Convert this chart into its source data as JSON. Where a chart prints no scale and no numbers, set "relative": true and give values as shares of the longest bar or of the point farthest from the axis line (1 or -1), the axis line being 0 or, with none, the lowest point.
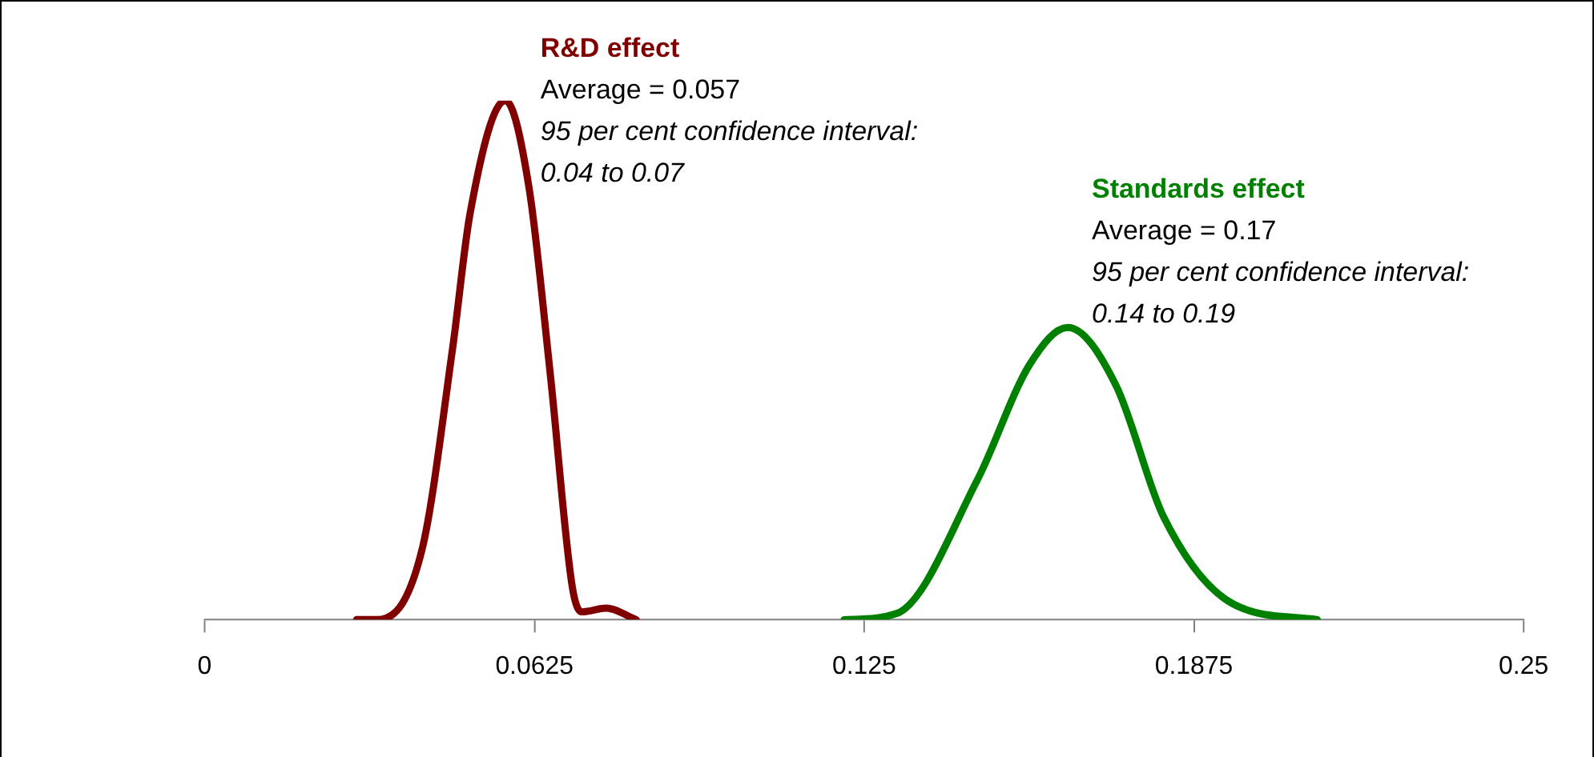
{
  "chart_data": {
    "type": "line",
    "relative": true,
    "xlim": [
      0,
      0.25
    ],
    "xticks": [
      0,
      0.0625,
      0.125,
      0.1875,
      0.25
    ],
    "series": [
      {
        "name": "R&D effect",
        "color": "#800000",
        "x": [
          0.0288,
          0.0327,
          0.0412,
          0.047,
          0.0503,
          0.057,
          0.0615,
          0.0655,
          0.0697,
          0.0715,
          0.0761,
          0.0818
        ],
        "values": [
          0,
          0,
          0.135,
          0.523,
          0.782,
          1,
          0.831,
          0.474,
          0.062,
          0.015,
          0.022,
          0
        ]
      },
      {
        "name": "Standards effect",
        "color": "#008000",
        "x": [
          0.1212,
          0.1312,
          0.1464,
          0.1564,
          0.1636,
          0.1727,
          0.1818,
          0.1948,
          0.2109
        ],
        "values": [
          0,
          0.012,
          0.268,
          0.492,
          0.563,
          0.452,
          0.197,
          0.031,
          0
        ]
      }
    ],
    "annotations": [
      "Average = 0.057",
      "95 per cent confidence interval:",
      "0.04 to 0.07",
      "Average = 0.17",
      "95 per cent confidence interval:",
      "0.14 to 0.19"
    ]
  }
}
